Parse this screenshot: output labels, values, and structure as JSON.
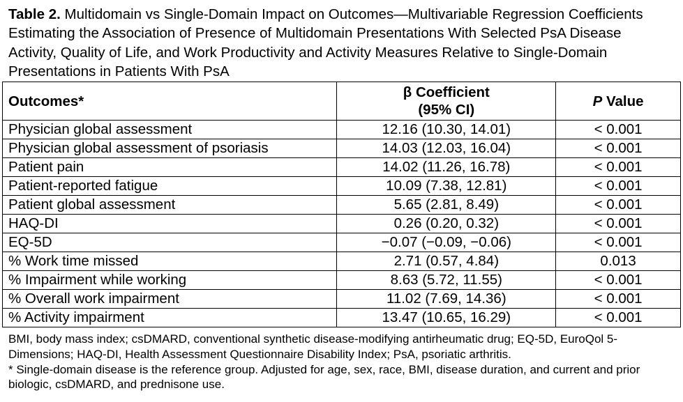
{
  "caption": {
    "label": "Table 2.",
    "text": "Multidomain vs Single-Domain Impact on Outcomes—Multivariable Regression Coefficients Estimating the Association of Presence of Multidomain Presentations With Selected PsA Disease Activity, Quality of Life, and Work Productivity and Activity Measures Relative to Single-Domain Presentations in Patients With PsA"
  },
  "table": {
    "columns": [
      "Outcomes*",
      [
        "β Coefficient",
        "(95% CI)"
      ],
      [
        "P",
        "Value"
      ]
    ],
    "rows": [
      [
        "Physician global assessment",
        "12.16 (10.30, 14.01)",
        "< 0.001"
      ],
      [
        "Physician global assessment of psoriasis",
        "14.03 (12.03, 16.04)",
        "< 0.001"
      ],
      [
        "Patient pain",
        "14.02 (11.26, 16.78)",
        "< 0.001"
      ],
      [
        "Patient-reported fatigue",
        "10.09 (7.38, 12.81)",
        "< 0.001"
      ],
      [
        "Patient global assessment",
        "5.65 (2.81, 8.49)",
        "< 0.001"
      ],
      [
        "HAQ-DI",
        "0.26 (0.20, 0.32)",
        "< 0.001"
      ],
      [
        "EQ-5D",
        "−0.07 (−0.09, −0.06)",
        "< 0.001"
      ],
      [
        "% Work time missed",
        "2.71 (0.57, 4.84)",
        "0.013"
      ],
      [
        "% Impairment while working",
        "8.63 (5.72, 11.55)",
        "< 0.001"
      ],
      [
        "% Overall work impairment",
        "11.02 (7.69, 14.36)",
        "< 0.001"
      ],
      [
        "% Activity impairment",
        "13.47 (10.65, 16.29)",
        "< 0.001"
      ]
    ]
  },
  "footnotes": [
    "BMI, body mass index; csDMARD, conventional synthetic disease-modifying antirheumatic drug; EQ-5D, EuroQol 5-Dimensions; HAQ-DI, Health Assessment Questionnaire Disability Index; PsA, psoriatic arthritis.",
    "* Single-domain disease is the reference group. Adjusted for age, sex, race, BMI, disease duration, and current and prior biologic, csDMARD, and prednisone use."
  ]
}
